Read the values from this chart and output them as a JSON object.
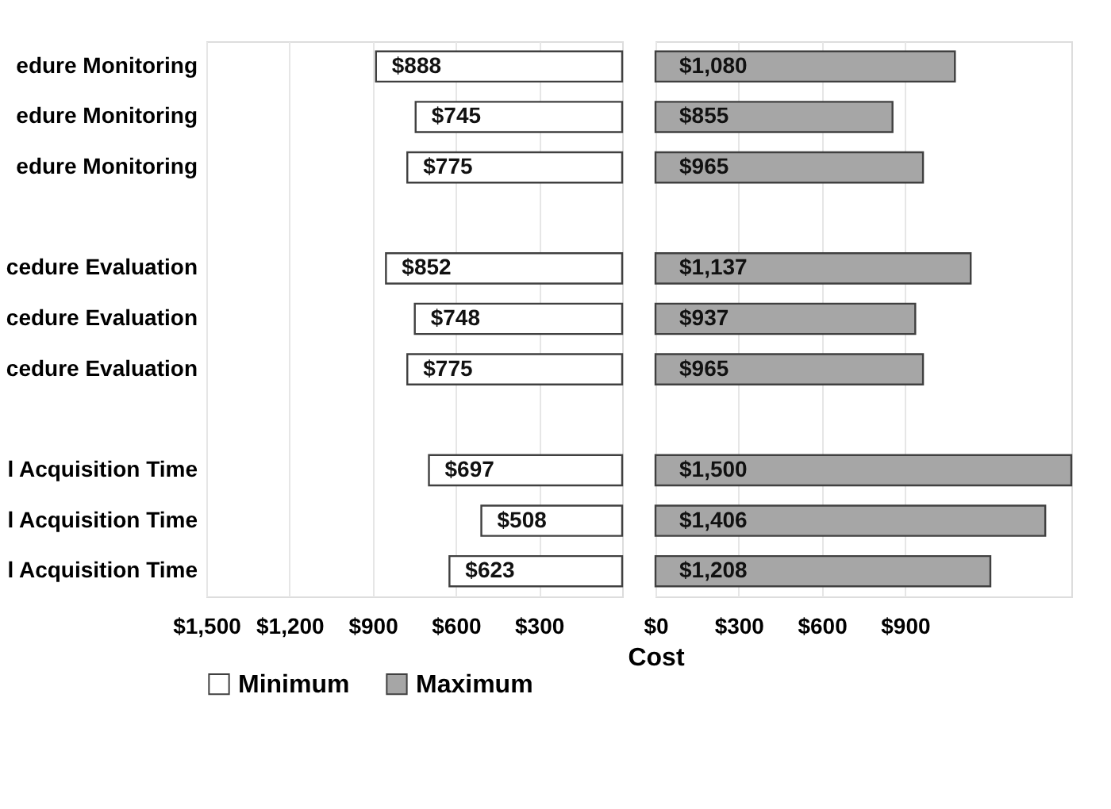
{
  "chart_data": [
    {
      "type": "bar",
      "orientation": "horizontal",
      "categories": [
        "edure Monitoring",
        "edure Monitoring",
        "edure Monitoring",
        null,
        "cedure Evaluation",
        "cedure Evaluation",
        "cedure Evaluation",
        null,
        "l Acquisition Time",
        "l Acquisition Time",
        "l Acquisition Time"
      ],
      "series": [
        {
          "name": "Minimum",
          "color": "#ffffff",
          "values": [
            888,
            745,
            775,
            null,
            852,
            748,
            775,
            null,
            697,
            508,
            623
          ],
          "value_labels": [
            "$888",
            "$745",
            "$775",
            null,
            "$852",
            "$748",
            "$775",
            null,
            "$697",
            "$508",
            "$623"
          ]
        }
      ],
      "xlim": [
        1500,
        0
      ],
      "xticks": [
        {
          "value": 1500,
          "label": "$1,500"
        },
        {
          "value": 1200,
          "label": "$1,200"
        },
        {
          "value": 900,
          "label": "$900"
        },
        {
          "value": 600,
          "label": "$600"
        },
        {
          "value": 300,
          "label": "$300"
        }
      ],
      "grid": "x",
      "legend": "bottom left"
    },
    {
      "type": "bar",
      "orientation": "horizontal",
      "xlabel": "Cost",
      "categories": [
        null,
        null,
        null,
        null,
        null,
        null,
        null,
        null,
        null,
        null,
        null
      ],
      "series": [
        {
          "name": "Maximum",
          "color": "#a6a6a6",
          "values": [
            1080,
            855,
            965,
            null,
            1137,
            937,
            965,
            null,
            1500,
            1406,
            1208
          ],
          "value_labels": [
            "$1,080",
            "$855",
            "$965",
            null,
            "$1,137",
            "$937",
            "$965",
            null,
            "$1,500",
            "$1,406",
            "$1,208"
          ]
        }
      ],
      "xlim": [
        0,
        1500
      ],
      "xticks": [
        {
          "value": 0,
          "label": "$0"
        },
        {
          "value": 300,
          "label": "$300"
        },
        {
          "value": 600,
          "label": "$600"
        },
        {
          "value": 900,
          "label": "$900"
        }
      ],
      "grid": "x",
      "legend": "bottom left",
      "tick_labels": "x"
    }
  ]
}
